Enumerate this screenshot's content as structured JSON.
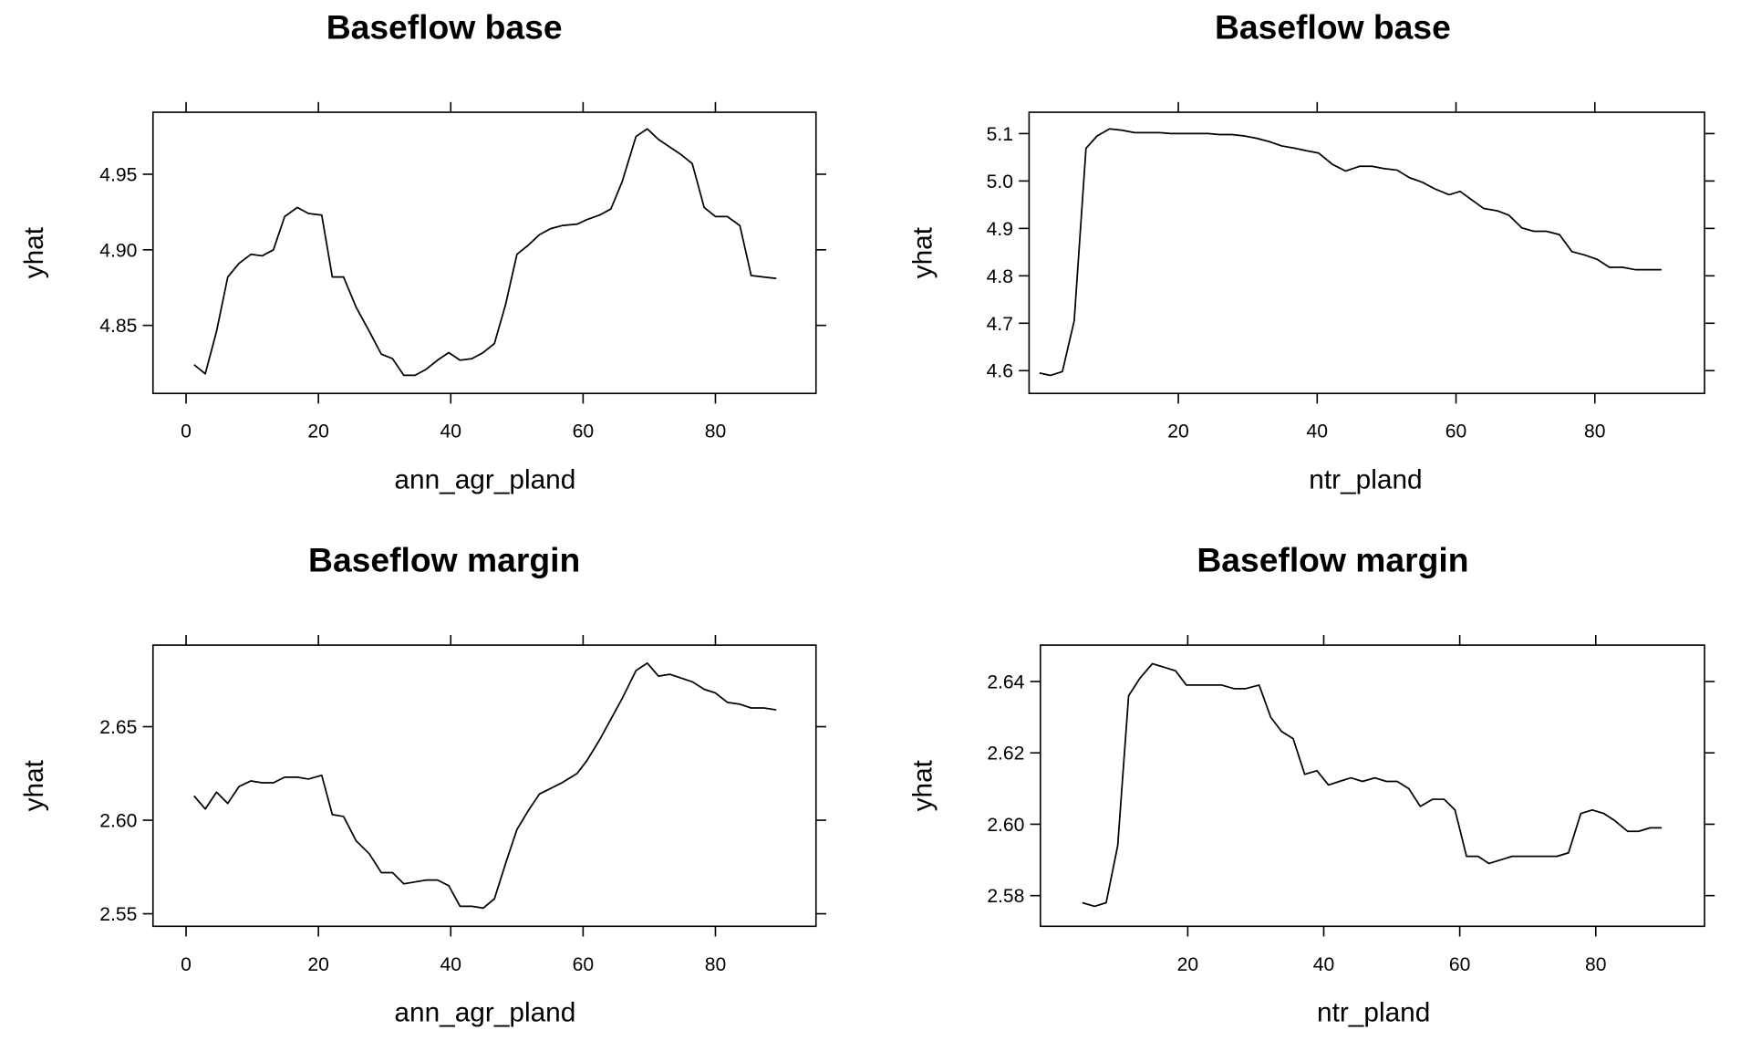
{
  "chart_data": [
    {
      "type": "line",
      "title": "Baseflow base",
      "xlabel": "ann_agr_pland",
      "ylabel": "yhat",
      "color": "#000000",
      "xlim": [
        -5,
        95.2
      ],
      "ylim": [
        4.805,
        4.991
      ],
      "xticks": [
        0,
        20,
        40,
        60,
        80
      ],
      "yticks": [
        4.85,
        {
          "value": 4.9,
          "label": "4.90"
        },
        4.95
      ],
      "x": [
        1.2,
        2.9,
        4.6,
        6.3,
        8.0,
        9.8,
        11.5,
        13.2,
        14.9,
        16.8,
        18.5,
        20.5,
        22.1,
        23.8,
        25.7,
        27.7,
        29.5,
        31.2,
        32.9,
        34.6,
        36.3,
        38.0,
        39.7,
        41.4,
        43.2,
        44.9,
        46.6,
        48.3,
        50.0,
        51.7,
        53.4,
        55.1,
        56.8,
        59.1,
        60.6,
        62.5,
        64.2,
        65.9,
        68.0,
        69.7,
        71.4,
        73.1,
        74.8,
        76.5,
        78.3,
        80.0,
        81.8,
        83.7,
        85.4,
        87.3,
        89.2
      ],
      "values": [
        4.824,
        4.818,
        4.846,
        4.882,
        4.891,
        4.897,
        4.896,
        4.9,
        4.922,
        4.928,
        4.924,
        4.923,
        4.882,
        4.882,
        4.862,
        4.846,
        4.831,
        4.828,
        4.817,
        4.817,
        4.821,
        4.827,
        4.832,
        4.827,
        4.828,
        4.832,
        4.838,
        4.864,
        4.897,
        4.903,
        4.91,
        4.914,
        4.916,
        4.917,
        4.92,
        4.923,
        4.927,
        4.945,
        4.975,
        4.98,
        4.973,
        4.968,
        4.963,
        4.957,
        4.928,
        4.922,
        4.922,
        4.916,
        4.883,
        4.882,
        4.881
      ]
    },
    {
      "type": "line",
      "title": "Baseflow base",
      "xlabel": "ntr_pland",
      "ylabel": "yhat",
      "color": "#000000",
      "xlim": [
        -1.5,
        95.8
      ],
      "ylim": [
        4.552,
        5.145
      ],
      "xticks": [
        20,
        40,
        60,
        80
      ],
      "yticks": [
        4.6,
        4.7,
        4.8,
        4.9,
        {
          "value": 5,
          "label": "5.0"
        },
        5.1
      ],
      "x": [
        0.0,
        1.6,
        3.3,
        5.0,
        6.7,
        8.3,
        10.1,
        11.9,
        13.7,
        15.5,
        17.3,
        18.9,
        20.7,
        22.5,
        24.3,
        25.9,
        27.7,
        29.5,
        31.3,
        33.1,
        34.9,
        36.8,
        38.4,
        40.2,
        42.2,
        44.1,
        46.1,
        47.9,
        49.7,
        51.5,
        53.3,
        55.2,
        57.0,
        59.0,
        60.6,
        62.2,
        64.0,
        66.0,
        67.6,
        69.5,
        71.2,
        73.0,
        74.9,
        76.7,
        78.5,
        80.3,
        82.1,
        84.0,
        85.8,
        87.8,
        89.6
      ],
      "values": [
        4.595,
        4.59,
        4.598,
        4.705,
        5.069,
        5.095,
        5.11,
        5.107,
        5.102,
        5.102,
        5.102,
        5.1,
        5.1,
        5.1,
        5.1,
        5.098,
        5.098,
        5.095,
        5.09,
        5.083,
        5.074,
        5.069,
        5.064,
        5.059,
        5.035,
        5.021,
        5.031,
        5.031,
        5.026,
        5.023,
        5.007,
        4.997,
        4.983,
        4.971,
        4.978,
        4.961,
        4.942,
        4.937,
        4.928,
        4.901,
        4.894,
        4.894,
        4.887,
        4.851,
        4.844,
        4.835,
        4.818,
        4.818,
        4.813,
        4.813,
        4.813
      ]
    },
    {
      "type": "line",
      "title": "Baseflow margin",
      "xlabel": "ann_agr_pland",
      "ylabel": "yhat",
      "color": "#000000",
      "xlim": [
        -5,
        95.2
      ],
      "ylim": [
        2.5433,
        2.6936
      ],
      "xticks": [
        0,
        20,
        40,
        60,
        80
      ],
      "yticks": [
        2.55,
        {
          "value": 2.6,
          "label": "2.60"
        },
        2.65
      ],
      "x": [
        1.2,
        2.9,
        4.6,
        6.3,
        8.0,
        9.8,
        11.5,
        13.2,
        14.9,
        16.8,
        18.5,
        20.5,
        22.1,
        23.8,
        25.7,
        27.7,
        29.5,
        31.2,
        32.9,
        34.6,
        36.3,
        38.0,
        39.7,
        41.4,
        43.2,
        44.9,
        46.6,
        48.3,
        50.0,
        51.7,
        53.4,
        55.1,
        56.8,
        59.1,
        60.6,
        62.5,
        64.2,
        65.9,
        68.0,
        69.7,
        71.4,
        73.1,
        74.8,
        76.5,
        78.3,
        80.0,
        81.8,
        83.7,
        85.4,
        87.3,
        89.2
      ],
      "values": [
        2.613,
        2.606,
        2.615,
        2.609,
        2.618,
        2.621,
        2.62,
        2.62,
        2.623,
        2.623,
        2.622,
        2.624,
        2.603,
        2.602,
        2.589,
        2.582,
        2.572,
        2.572,
        2.566,
        2.567,
        2.568,
        2.568,
        2.565,
        2.554,
        2.554,
        2.553,
        2.558,
        2.577,
        2.595,
        2.605,
        2.614,
        2.617,
        2.62,
        2.625,
        2.632,
        2.643,
        2.654,
        2.665,
        2.68,
        2.684,
        2.677,
        2.678,
        2.676,
        2.674,
        2.67,
        2.668,
        2.663,
        2.662,
        2.66,
        2.66,
        2.659
      ]
    },
    {
      "type": "line",
      "title": "Baseflow margin",
      "xlabel": "ntr_pland",
      "ylabel": "yhat",
      "color": "#000000",
      "xlim": [
        -1.67,
        96
      ],
      "ylim": [
        2.5714,
        2.6502
      ],
      "xticks": [
        20,
        40,
        60,
        80
      ],
      "yticks": [
        2.58,
        {
          "value": 2.6,
          "label": "2.60"
        },
        2.62,
        2.64
      ],
      "x": [
        4.5,
        6.3,
        8.0,
        9.7,
        11.3,
        13.0,
        14.8,
        16.5,
        18.2,
        19.8,
        21.7,
        23.3,
        25.0,
        26.8,
        28.5,
        30.5,
        32.2,
        33.8,
        35.5,
        37.2,
        39.0,
        40.7,
        42.3,
        44.0,
        45.7,
        47.5,
        49.2,
        50.8,
        52.5,
        54.2,
        56.0,
        57.7,
        59.3,
        61.0,
        62.7,
        64.3,
        66.0,
        67.7,
        69.3,
        71.0,
        72.7,
        74.3,
        76.0,
        77.8,
        79.5,
        81.2,
        82.8,
        84.7,
        86.3,
        88.0,
        89.7
      ],
      "values": [
        2.578,
        2.577,
        2.578,
        2.594,
        2.636,
        2.641,
        2.645,
        2.644,
        2.643,
        2.639,
        2.639,
        2.639,
        2.639,
        2.638,
        2.638,
        2.639,
        2.63,
        2.626,
        2.624,
        2.614,
        2.615,
        2.611,
        2.612,
        2.613,
        2.612,
        2.613,
        2.612,
        2.612,
        2.61,
        2.605,
        2.607,
        2.607,
        2.604,
        2.591,
        2.591,
        2.589,
        2.59,
        2.591,
        2.591,
        2.591,
        2.591,
        2.591,
        2.592,
        2.603,
        2.604,
        2.603,
        2.601,
        2.598,
        2.598,
        2.599,
        2.599
      ]
    }
  ]
}
